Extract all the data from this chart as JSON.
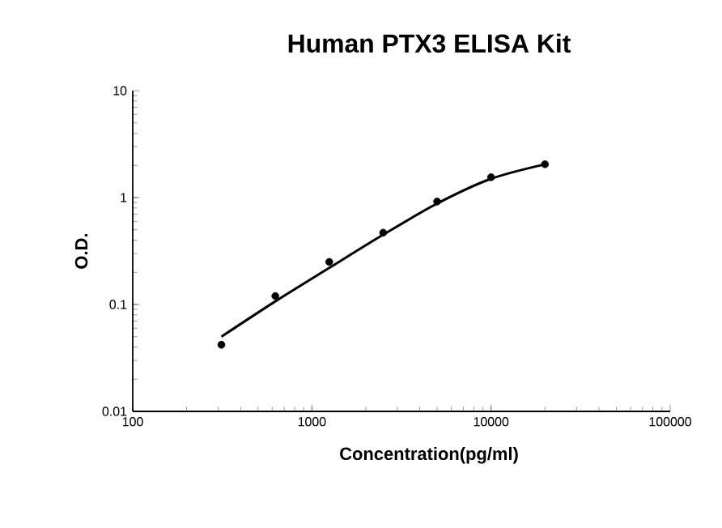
{
  "chart_data": {
    "type": "scatter",
    "title": "Human PTX3 ELISA Kit",
    "xlabel": "Concentration(pg/ml)",
    "ylabel": "O.D.",
    "x": [
      312.5,
      625,
      1250,
      2500,
      5000,
      10000,
      20000
    ],
    "series": [
      {
        "color": "#000000",
        "marker": "circle",
        "values": [
          0.042,
          0.12,
          0.25,
          0.47,
          0.92,
          1.55,
          2.05
        ]
      },
      {
        "type": "line",
        "color": "#000000",
        "marker": "none",
        "x": [
          312.5,
          625,
          1250,
          2500,
          5000,
          10000,
          20000
        ],
        "values": [
          0.05,
          0.107,
          0.22,
          0.45,
          0.88,
          1.5,
          2.05
        ]
      }
    ],
    "log": "xy",
    "xlim": [
      100,
      100000
    ],
    "ylim": [
      0.01,
      10
    ],
    "xticks": [
      100,
      1000,
      10000,
      100000
    ],
    "yticks": [
      0.01,
      0.1,
      1,
      10
    ],
    "grid": false
  }
}
